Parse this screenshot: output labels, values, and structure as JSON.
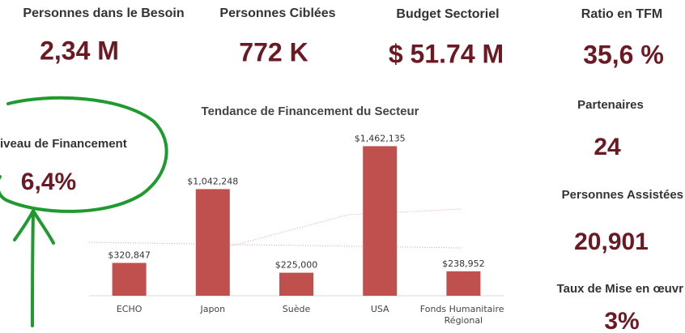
{
  "kpis": [
    {
      "title": "Personnes dans le Besoin",
      "value": "2,34 M"
    },
    {
      "title": "Personnes Ciblées",
      "value": "772 K"
    },
    {
      "title": "Budget Sectoriel",
      "value": "$ 51.74 M"
    },
    {
      "title": "Ratio en TFM",
      "value": "35,6 %"
    },
    {
      "title": "iveau de Financement",
      "value": "6,4%"
    },
    {
      "title": "Partenaires",
      "value": "24"
    },
    {
      "title": "Personnes Assistées",
      "value": "20,901"
    },
    {
      "title": "Taux de Mise en œuvr",
      "value": "3%"
    }
  ],
  "chart_data": {
    "type": "bar",
    "title": "Tendance de Financement du Secteur",
    "categories": [
      "ECHO",
      "Japon",
      "Suède",
      "USA",
      "Fonds Humanitaire Régional"
    ],
    "values": [
      320847,
      1042248,
      225000,
      1462135,
      238952
    ],
    "value_labels": [
      "$320,847",
      "$1,042,248",
      "$225,000",
      "$1,462,135",
      "$238,952"
    ],
    "color": "#c0504d",
    "ylim": [
      0,
      1600000
    ]
  }
}
